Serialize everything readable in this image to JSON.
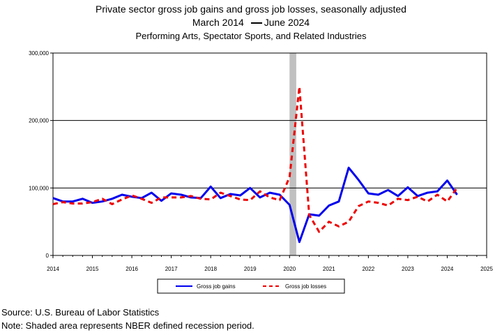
{
  "chart_data": {
    "type": "line",
    "title": "Private sector gross job gains and gross job losses, seasonally adjusted",
    "title_line2_start": "March 2014",
    "title_line2_end": "June 2024",
    "subtitle": "Performing Arts, Spectator Sports, and Related Industries",
    "xlabel": "",
    "ylabel": "",
    "xlim": [
      2014,
      2025
    ],
    "ylim": [
      0,
      300000
    ],
    "x_ticks": [
      "2014",
      "2015",
      "2016",
      "2017",
      "2018",
      "2019",
      "2020",
      "2021",
      "2022",
      "2023",
      "2024",
      "2025"
    ],
    "y_ticks": [
      {
        "value": 0,
        "label": "0"
      },
      {
        "value": 100000,
        "label": "100,000"
      },
      {
        "value": 200000,
        "label": "200,000"
      },
      {
        "value": 300000,
        "label": "300,000"
      }
    ],
    "grid": "horizontal",
    "legend_placement": "bottom",
    "recession": {
      "start": 2020.0,
      "end": 2020.17,
      "color": "#c0c0c0"
    },
    "x": [
      2014.0,
      2014.25,
      2014.5,
      2014.75,
      2015.0,
      2015.25,
      2015.5,
      2015.75,
      2016.0,
      2016.25,
      2016.5,
      2016.75,
      2017.0,
      2017.25,
      2017.5,
      2017.75,
      2018.0,
      2018.25,
      2018.5,
      2018.75,
      2019.0,
      2019.25,
      2019.5,
      2019.75,
      2020.0,
      2020.25,
      2020.5,
      2020.75,
      2021.0,
      2021.25,
      2021.5,
      2021.75,
      2022.0,
      2022.25,
      2022.5,
      2022.75,
      2023.0,
      2023.25,
      2023.5,
      2023.75,
      2024.0,
      2024.25
    ],
    "series": [
      {
        "name": "Gross job gains",
        "color": "#0000ee",
        "style": "solid",
        "values": [
          85000,
          80000,
          80000,
          84000,
          78000,
          80000,
          84000,
          90000,
          87000,
          85000,
          93000,
          81000,
          92000,
          90000,
          86000,
          85000,
          102000,
          85000,
          91000,
          89000,
          100000,
          86000,
          93000,
          90000,
          75000,
          20000,
          61000,
          59000,
          74000,
          80000,
          130000,
          112000,
          92000,
          90000,
          97000,
          88000,
          101000,
          88000,
          93000,
          95000,
          111000,
          90000
        ]
      },
      {
        "name": "Gross job losses",
        "color": "#ee0000",
        "style": "dashed",
        "values": [
          76000,
          79000,
          77000,
          77000,
          79000,
          84000,
          76000,
          83000,
          89000,
          84000,
          78000,
          86000,
          86000,
          86000,
          88000,
          84000,
          83000,
          93000,
          88000,
          83000,
          82000,
          95000,
          86000,
          82000,
          116000,
          250000,
          60000,
          35000,
          50000,
          43000,
          50000,
          73000,
          80000,
          78000,
          74000,
          84000,
          82000,
          87000,
          80000,
          90000,
          80000,
          100000
        ]
      }
    ]
  },
  "footer": {
    "source": "Source: U.S. Bureau of Labor Statistics",
    "note": "Note: Shaded area represents NBER defined recession period."
  }
}
